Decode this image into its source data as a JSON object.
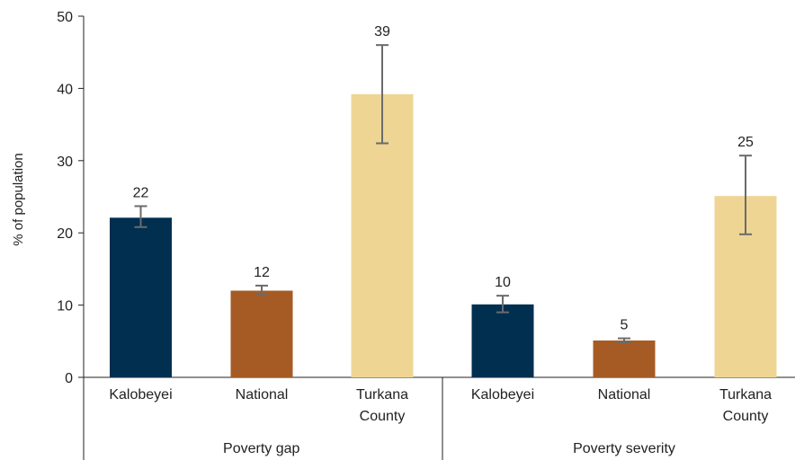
{
  "chart_data": {
    "type": "bar",
    "ylabel": "% of population",
    "ylim": [
      0,
      50
    ],
    "yticks": [
      "0",
      "10",
      "20",
      "30",
      "40",
      "50"
    ],
    "grid": false,
    "legend": "none",
    "colors": {
      "Kalobeyei": "#002f50",
      "National": "#a65b24",
      "Turkana County": "#eed593",
      "error_bar": "#6b6b6b"
    },
    "groups": [
      {
        "name": "Poverty gap",
        "bars": [
          {
            "category": [
              "Kalobeyei"
            ],
            "value": 22.1,
            "label": "22",
            "err_low": 20.8,
            "err_high": 23.7,
            "color_key": "Kalobeyei"
          },
          {
            "category": [
              "National"
            ],
            "value": 12.0,
            "label": "12",
            "err_low": 11.5,
            "err_high": 12.7,
            "color_key": "National"
          },
          {
            "category": [
              "Turkana",
              "County"
            ],
            "value": 39.2,
            "label": "39",
            "err_low": 32.4,
            "err_high": 46.0,
            "color_key": "Turkana County"
          }
        ]
      },
      {
        "name": "Poverty severity",
        "bars": [
          {
            "category": [
              "Kalobeyei"
            ],
            "value": 10.1,
            "label": "10",
            "err_low": 9.0,
            "err_high": 11.3,
            "color_key": "Kalobeyei"
          },
          {
            "category": [
              "National"
            ],
            "value": 5.1,
            "label": "5",
            "err_low": 4.8,
            "err_high": 5.4,
            "color_key": "National"
          },
          {
            "category": [
              "Turkana",
              "County"
            ],
            "value": 25.1,
            "label": "25",
            "err_low": 19.8,
            "err_high": 30.7,
            "color_key": "Turkana County"
          }
        ]
      }
    ]
  }
}
